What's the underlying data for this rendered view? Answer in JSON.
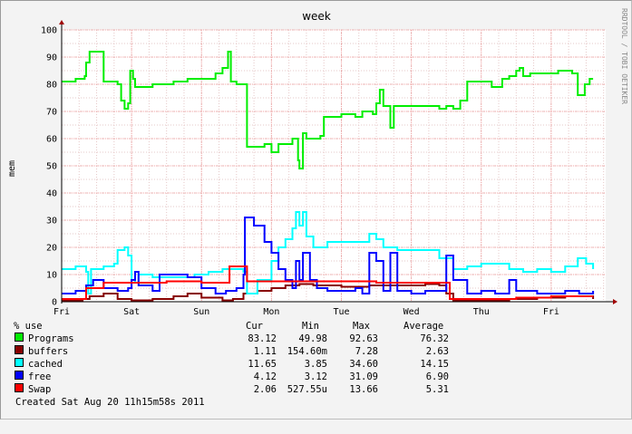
{
  "watermark": "RRDTOOL / TOBI OETIKER",
  "chart_data": {
    "type": "line",
    "title": "week",
    "ylabel": "mem",
    "ylim": [
      0,
      100
    ],
    "yticks": [
      0,
      10,
      20,
      30,
      40,
      50,
      60,
      70,
      80,
      90,
      100
    ],
    "xlim": [
      0,
      7.78
    ],
    "xtick_labels": [
      "Fri",
      "Sat",
      "Sun",
      "Mon",
      "Tue",
      "Wed",
      "Thu",
      "Fri"
    ],
    "grid": true,
    "legend_header": {
      "label": "% use",
      "cur": "Cur",
      "min": "Min",
      "max": "Max",
      "avg": "Average"
    },
    "series": [
      {
        "name": "Programs",
        "color": "#00ee00",
        "cur": "83.12",
        "min": "49.98",
        "max": "92.63",
        "avg": "76.32",
        "points": [
          [
            0,
            81
          ],
          [
            0.2,
            82
          ],
          [
            0.33,
            83
          ],
          [
            0.35,
            88
          ],
          [
            0.4,
            92
          ],
          [
            0.55,
            92
          ],
          [
            0.6,
            81
          ],
          [
            0.8,
            80
          ],
          [
            0.85,
            74
          ],
          [
            0.9,
            71
          ],
          [
            0.95,
            73
          ],
          [
            0.98,
            85
          ],
          [
            1.02,
            82
          ],
          [
            1.05,
            79
          ],
          [
            1.3,
            80
          ],
          [
            1.6,
            81
          ],
          [
            1.8,
            82
          ],
          [
            2.0,
            82
          ],
          [
            2.2,
            84
          ],
          [
            2.3,
            86
          ],
          [
            2.38,
            92
          ],
          [
            2.42,
            81
          ],
          [
            2.5,
            80
          ],
          [
            2.6,
            80
          ],
          [
            2.65,
            57
          ],
          [
            2.9,
            58
          ],
          [
            3.0,
            55
          ],
          [
            3.1,
            58
          ],
          [
            3.3,
            60
          ],
          [
            3.38,
            52
          ],
          [
            3.4,
            49
          ],
          [
            3.45,
            62
          ],
          [
            3.5,
            60
          ],
          [
            3.7,
            61
          ],
          [
            3.75,
            68
          ],
          [
            4.0,
            69
          ],
          [
            4.2,
            68
          ],
          [
            4.3,
            70
          ],
          [
            4.45,
            69
          ],
          [
            4.5,
            73
          ],
          [
            4.55,
            78
          ],
          [
            4.6,
            72
          ],
          [
            4.7,
            64
          ],
          [
            4.75,
            72
          ],
          [
            5.0,
            72
          ],
          [
            5.2,
            72
          ],
          [
            5.4,
            71
          ],
          [
            5.5,
            72
          ],
          [
            5.6,
            71
          ],
          [
            5.7,
            74
          ],
          [
            5.8,
            81
          ],
          [
            6.0,
            81
          ],
          [
            6.15,
            79
          ],
          [
            6.3,
            82
          ],
          [
            6.4,
            83
          ],
          [
            6.5,
            85
          ],
          [
            6.55,
            86
          ],
          [
            6.6,
            83
          ],
          [
            6.7,
            84
          ],
          [
            6.9,
            84
          ],
          [
            7.1,
            85
          ],
          [
            7.3,
            84
          ],
          [
            7.38,
            76
          ],
          [
            7.48,
            80
          ],
          [
            7.55,
            82
          ],
          [
            7.6,
            82
          ]
        ]
      },
      {
        "name": "buffers",
        "color": "#880000",
        "cur": "1.11",
        "min": "154.60m",
        "max": "7.28",
        "avg": "2.63",
        "points": [
          [
            0,
            0.5
          ],
          [
            0.3,
            1
          ],
          [
            0.4,
            2
          ],
          [
            0.6,
            3
          ],
          [
            0.8,
            1
          ],
          [
            1.0,
            0.5
          ],
          [
            1.3,
            1
          ],
          [
            1.6,
            2
          ],
          [
            1.8,
            3
          ],
          [
            2.0,
            1.5
          ],
          [
            2.3,
            0.5
          ],
          [
            2.45,
            1
          ],
          [
            2.6,
            3
          ],
          [
            2.8,
            4
          ],
          [
            3.0,
            5
          ],
          [
            3.2,
            6
          ],
          [
            3.4,
            6.5
          ],
          [
            3.6,
            6
          ],
          [
            3.8,
            6
          ],
          [
            4.0,
            5.5
          ],
          [
            4.2,
            5.5
          ],
          [
            4.4,
            6
          ],
          [
            4.6,
            6
          ],
          [
            4.8,
            6
          ],
          [
            5.0,
            6
          ],
          [
            5.2,
            6.5
          ],
          [
            5.4,
            6
          ],
          [
            5.5,
            3
          ],
          [
            5.6,
            0.5
          ],
          [
            6.0,
            0.5
          ],
          [
            6.4,
            1
          ],
          [
            6.8,
            1.5
          ],
          [
            7.2,
            2
          ],
          [
            7.6,
            1
          ]
        ]
      },
      {
        "name": "cached",
        "color": "#00ffff",
        "cur": "11.65",
        "min": "3.85",
        "max": "34.60",
        "avg": "14.15",
        "points": [
          [
            0,
            12
          ],
          [
            0.2,
            13
          ],
          [
            0.35,
            11
          ],
          [
            0.38,
            3
          ],
          [
            0.42,
            12
          ],
          [
            0.6,
            13
          ],
          [
            0.75,
            14
          ],
          [
            0.8,
            19
          ],
          [
            0.9,
            20
          ],
          [
            0.95,
            17
          ],
          [
            1.0,
            8
          ],
          [
            1.05,
            7
          ],
          [
            1.1,
            10
          ],
          [
            1.3,
            9
          ],
          [
            1.5,
            9
          ],
          [
            1.7,
            9
          ],
          [
            1.9,
            10
          ],
          [
            2.1,
            11
          ],
          [
            2.3,
            12
          ],
          [
            2.5,
            12
          ],
          [
            2.6,
            11
          ],
          [
            2.65,
            3
          ],
          [
            2.8,
            8
          ],
          [
            3.0,
            15
          ],
          [
            3.1,
            20
          ],
          [
            3.2,
            23
          ],
          [
            3.3,
            27
          ],
          [
            3.35,
            33
          ],
          [
            3.4,
            28
          ],
          [
            3.45,
            33
          ],
          [
            3.5,
            24
          ],
          [
            3.6,
            20
          ],
          [
            3.7,
            20
          ],
          [
            3.8,
            22
          ],
          [
            4.0,
            22
          ],
          [
            4.2,
            22
          ],
          [
            4.4,
            25
          ],
          [
            4.5,
            23
          ],
          [
            4.6,
            20
          ],
          [
            4.8,
            19
          ],
          [
            5.0,
            19
          ],
          [
            5.2,
            19
          ],
          [
            5.4,
            16
          ],
          [
            5.6,
            12
          ],
          [
            5.8,
            13
          ],
          [
            6.0,
            14
          ],
          [
            6.2,
            14
          ],
          [
            6.4,
            12
          ],
          [
            6.6,
            11
          ],
          [
            6.8,
            12
          ],
          [
            7.0,
            11
          ],
          [
            7.2,
            13
          ],
          [
            7.38,
            16
          ],
          [
            7.5,
            14
          ],
          [
            7.6,
            12
          ]
        ]
      },
      {
        "name": "free",
        "color": "#0000ff",
        "cur": "4.12",
        "min": "3.12",
        "max": "31.09",
        "avg": "6.90",
        "points": [
          [
            0,
            3
          ],
          [
            0.2,
            4
          ],
          [
            0.35,
            6
          ],
          [
            0.45,
            8
          ],
          [
            0.6,
            5
          ],
          [
            0.8,
            4
          ],
          [
            0.95,
            5
          ],
          [
            1.0,
            8
          ],
          [
            1.05,
            11
          ],
          [
            1.1,
            6
          ],
          [
            1.3,
            4
          ],
          [
            1.4,
            10
          ],
          [
            1.6,
            10
          ],
          [
            1.8,
            9
          ],
          [
            2.0,
            5
          ],
          [
            2.2,
            3
          ],
          [
            2.35,
            4
          ],
          [
            2.5,
            5
          ],
          [
            2.6,
            10
          ],
          [
            2.62,
            31
          ],
          [
            2.75,
            28
          ],
          [
            2.9,
            22
          ],
          [
            3.0,
            18
          ],
          [
            3.1,
            12
          ],
          [
            3.2,
            8
          ],
          [
            3.3,
            5
          ],
          [
            3.35,
            15
          ],
          [
            3.4,
            8
          ],
          [
            3.45,
            18
          ],
          [
            3.55,
            8
          ],
          [
            3.65,
            5
          ],
          [
            3.8,
            4
          ],
          [
            4.0,
            4
          ],
          [
            4.2,
            5
          ],
          [
            4.3,
            3
          ],
          [
            4.4,
            18
          ],
          [
            4.5,
            15
          ],
          [
            4.6,
            4
          ],
          [
            4.7,
            18
          ],
          [
            4.8,
            4
          ],
          [
            5.0,
            3
          ],
          [
            5.2,
            4
          ],
          [
            5.4,
            4
          ],
          [
            5.5,
            17
          ],
          [
            5.6,
            8
          ],
          [
            5.8,
            3
          ],
          [
            6.0,
            4
          ],
          [
            6.2,
            3
          ],
          [
            6.4,
            8
          ],
          [
            6.5,
            4
          ],
          [
            6.8,
            3
          ],
          [
            7.0,
            3
          ],
          [
            7.2,
            4
          ],
          [
            7.4,
            3
          ],
          [
            7.6,
            4
          ]
        ]
      },
      {
        "name": "Swap",
        "color": "#ff0000",
        "cur": "2.06",
        "min": "527.55u",
        "max": "13.66",
        "avg": "5.31",
        "points": [
          [
            0,
            1
          ],
          [
            0.3,
            1
          ],
          [
            0.35,
            5
          ],
          [
            0.6,
            7
          ],
          [
            1.0,
            7
          ],
          [
            1.5,
            7.5
          ],
          [
            2.0,
            7
          ],
          [
            2.3,
            7
          ],
          [
            2.4,
            13
          ],
          [
            2.6,
            13
          ],
          [
            2.65,
            7.5
          ],
          [
            3.0,
            7.5
          ],
          [
            3.5,
            7.5
          ],
          [
            4.0,
            7.5
          ],
          [
            4.5,
            7
          ],
          [
            5.0,
            7
          ],
          [
            5.5,
            7
          ],
          [
            5.55,
            1
          ],
          [
            6.0,
            1
          ],
          [
            6.5,
            1.5
          ],
          [
            7.0,
            2
          ],
          [
            7.6,
            2
          ]
        ]
      }
    ]
  },
  "legend": {
    "created": "Created Sat Aug 20 11h15m58s 2011"
  }
}
